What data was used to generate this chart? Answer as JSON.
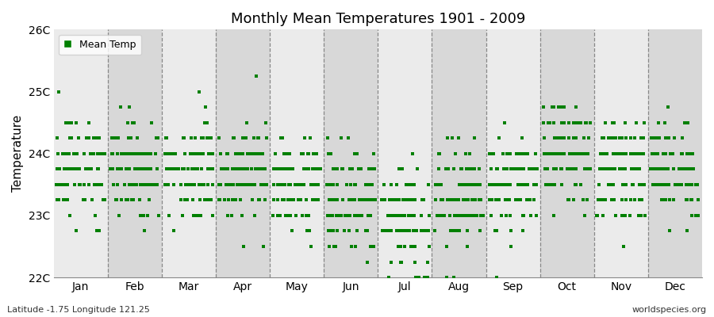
{
  "title": "Monthly Mean Temperatures 1901 - 2009",
  "ylabel": "Temperature",
  "bottom_left": "Latitude -1.75 Longitude 121.25",
  "bottom_right": "worldspecies.org",
  "legend_label": "Mean Temp",
  "marker_color": "#008000",
  "bg_color_light": "#ebebeb",
  "bg_color_dark": "#d8d8d8",
  "fig_bg_color": "#ffffff",
  "ylim_min": 22.0,
  "ylim_max": 26.0,
  "yticks": [
    22,
    23,
    24,
    25,
    26
  ],
  "ytick_labels": [
    "22C",
    "23C",
    "24C",
    "25C",
    "26C"
  ],
  "months": [
    "Jan",
    "Feb",
    "Mar",
    "Apr",
    "May",
    "Jun",
    "Jul",
    "Aug",
    "Sep",
    "Oct",
    "Nov",
    "Dec"
  ],
  "monthly_means": [
    23.75,
    23.75,
    23.75,
    23.75,
    23.5,
    23.25,
    23.0,
    23.25,
    23.5,
    24.0,
    23.75,
    23.75
  ],
  "monthly_stds": [
    0.38,
    0.38,
    0.4,
    0.38,
    0.38,
    0.42,
    0.48,
    0.45,
    0.38,
    0.38,
    0.38,
    0.38
  ],
  "n_years": 109,
  "seed": 12345,
  "quantize": 0.25
}
